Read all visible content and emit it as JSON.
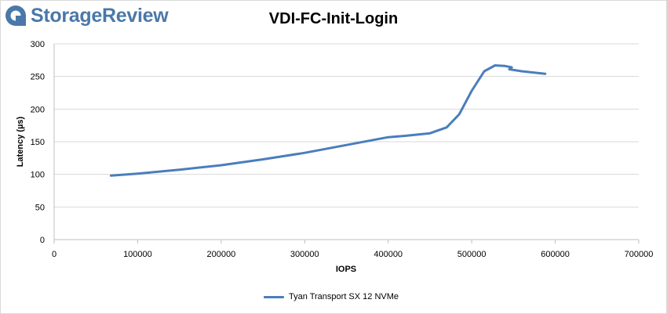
{
  "brand": {
    "name": "StorageReview"
  },
  "chart_data": {
    "type": "line",
    "title": "VDI-FC-Init-Login",
    "xlabel": "IOPS",
    "ylabel": "Latency (µs)",
    "xlim": [
      0,
      700000
    ],
    "ylim": [
      0,
      300
    ],
    "xticks": [
      0,
      100000,
      200000,
      300000,
      400000,
      500000,
      600000,
      700000
    ],
    "yticks": [
      0,
      50,
      100,
      150,
      200,
      250,
      300
    ],
    "grid": "horizontal",
    "legend_position": "bottom",
    "series": [
      {
        "name": "Tyan Transport SX 12 NVMe",
        "color": "#4a7ebb",
        "x": [
          68000,
          100000,
          150000,
          200000,
          250000,
          300000,
          350000,
          400000,
          420000,
          450000,
          470000,
          485000,
          500000,
          515000,
          528000,
          540000,
          548000,
          545000,
          560000,
          575000,
          588000
        ],
        "y": [
          98,
          101,
          107,
          114,
          123,
          133,
          145,
          157,
          159,
          163,
          172,
          192,
          228,
          258,
          267,
          266,
          264,
          261,
          258,
          256,
          254
        ]
      }
    ]
  }
}
